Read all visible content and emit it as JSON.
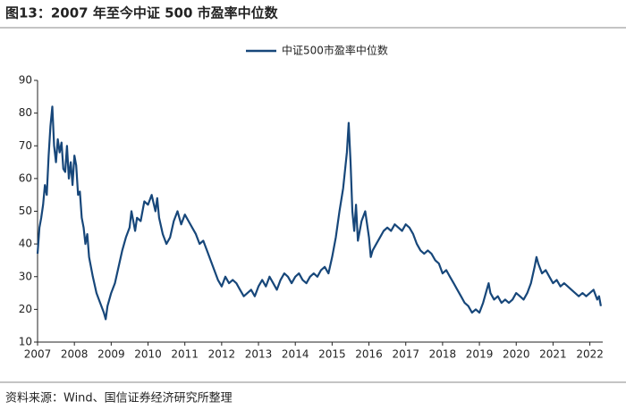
{
  "chart_data": {
    "type": "line",
    "title": "图13：2007 年至今中证 500 市盈率中位数",
    "source": "资料来源：Wind、国信证券经济研究所整理",
    "legend": "top",
    "grid": false,
    "xlim": [
      2007,
      2022.35
    ],
    "xticks": [
      2007,
      2008,
      2009,
      2010,
      2011,
      2012,
      2013,
      2014,
      2015,
      2016,
      2017,
      2018,
      2019,
      2020,
      2021,
      2022
    ],
    "ylim": [
      10,
      90
    ],
    "yticks": [
      10,
      20,
      30,
      40,
      50,
      60,
      70,
      80,
      90
    ],
    "x": [
      2007.0,
      2007.05,
      2007.1,
      2007.15,
      2007.2,
      2007.25,
      2007.3,
      2007.35,
      2007.4,
      2007.45,
      2007.5,
      2007.55,
      2007.6,
      2007.65,
      2007.7,
      2007.75,
      2007.8,
      2007.85,
      2007.9,
      2007.95,
      2008.0,
      2008.05,
      2008.1,
      2008.15,
      2008.2,
      2008.25,
      2008.3,
      2008.35,
      2008.4,
      2008.5,
      2008.6,
      2008.7,
      2008.8,
      2008.85,
      2008.9,
      2009.0,
      2009.1,
      2009.2,
      2009.3,
      2009.4,
      2009.5,
      2009.55,
      2009.65,
      2009.7,
      2009.8,
      2009.9,
      2010.0,
      2010.1,
      2010.2,
      2010.25,
      2010.3,
      2010.4,
      2010.5,
      2010.6,
      2010.7,
      2010.8,
      2010.9,
      2011.0,
      2011.1,
      2011.2,
      2011.3,
      2011.4,
      2011.5,
      2011.6,
      2011.7,
      2011.8,
      2011.9,
      2012.0,
      2012.1,
      2012.2,
      2012.3,
      2012.4,
      2012.5,
      2012.6,
      2012.7,
      2012.8,
      2012.9,
      2013.0,
      2013.1,
      2013.2,
      2013.3,
      2013.4,
      2013.5,
      2013.6,
      2013.7,
      2013.8,
      2013.9,
      2014.0,
      2014.1,
      2014.2,
      2014.3,
      2014.4,
      2014.5,
      2014.6,
      2014.7,
      2014.8,
      2014.9,
      2015.0,
      2015.1,
      2015.2,
      2015.3,
      2015.4,
      2015.45,
      2015.5,
      2015.55,
      2015.6,
      2015.65,
      2015.7,
      2015.8,
      2015.9,
      2016.0,
      2016.05,
      2016.1,
      2016.2,
      2016.3,
      2016.4,
      2016.5,
      2016.6,
      2016.7,
      2016.8,
      2016.9,
      2017.0,
      2017.1,
      2017.2,
      2017.3,
      2017.4,
      2017.5,
      2017.6,
      2017.7,
      2017.8,
      2017.9,
      2018.0,
      2018.1,
      2018.2,
      2018.3,
      2018.4,
      2018.5,
      2018.6,
      2018.7,
      2018.8,
      2018.9,
      2019.0,
      2019.1,
      2019.2,
      2019.25,
      2019.3,
      2019.4,
      2019.5,
      2019.6,
      2019.7,
      2019.8,
      2019.9,
      2020.0,
      2020.1,
      2020.2,
      2020.3,
      2020.4,
      2020.5,
      2020.55,
      2020.6,
      2020.7,
      2020.8,
      2020.9,
      2021.0,
      2021.1,
      2021.2,
      2021.3,
      2021.4,
      2021.5,
      2021.6,
      2021.7,
      2021.8,
      2021.9,
      2022.0,
      2022.1,
      2022.2,
      2022.25,
      2022.3
    ],
    "series": [
      {
        "name": "中证500市盈率中位数",
        "color": "#17477a",
        "values": [
          37,
          45,
          48,
          52,
          58,
          55,
          67,
          76,
          82,
          70,
          65,
          72,
          68,
          71,
          63,
          62,
          70,
          60,
          65,
          58,
          67,
          64,
          55,
          56,
          48,
          45,
          40,
          43,
          36,
          30,
          25,
          22,
          19,
          17,
          21,
          25,
          28,
          33,
          38,
          42,
          45,
          50,
          44,
          48,
          47,
          53,
          52,
          55,
          50,
          54,
          48,
          43,
          40,
          42,
          47,
          50,
          46,
          49,
          47,
          45,
          43,
          40,
          41,
          38,
          35,
          32,
          29,
          27,
          30,
          28,
          29,
          28,
          26,
          24,
          25,
          26,
          24,
          27,
          29,
          27,
          30,
          28,
          26,
          29,
          31,
          30,
          28,
          30,
          31,
          29,
          28,
          30,
          31,
          30,
          32,
          33,
          31,
          36,
          42,
          50,
          57,
          68,
          77,
          65,
          50,
          44,
          52,
          41,
          47,
          50,
          42,
          36,
          38,
          40,
          42,
          44,
          45,
          44,
          46,
          45,
          44,
          46,
          45,
          43,
          40,
          38,
          37,
          38,
          37,
          35,
          34,
          31,
          32,
          30,
          28,
          26,
          24,
          22,
          21,
          19,
          20,
          19,
          22,
          26,
          28,
          25,
          23,
          24,
          22,
          23,
          22,
          23,
          25,
          24,
          23,
          25,
          28,
          33,
          36,
          34,
          31,
          32,
          30,
          28,
          29,
          27,
          28,
          27,
          26,
          25,
          24,
          25,
          24,
          25,
          26,
          23,
          24,
          21
        ]
      }
    ]
  }
}
